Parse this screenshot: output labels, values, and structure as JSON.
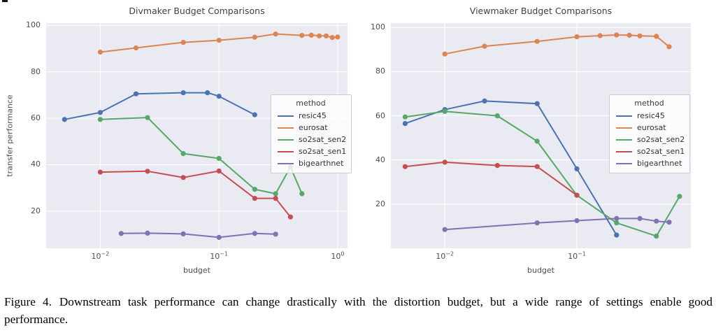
{
  "page": {
    "caption_label": "Figure 4.",
    "caption_text": "Downstream task performance can change drastically with the distortion budget, but a wide range of settings enable good performance."
  },
  "colors": {
    "figure_background": "#ffffff",
    "plot_background": "#eaeaf2",
    "gridline": "#ffffff",
    "title_text": "#3f3f3f",
    "tick_text": "#4d4d4d",
    "legend_border": "#ccccd6"
  },
  "chart_data": [
    {
      "type": "line",
      "title": "Divmaker Budget Comparisons",
      "xlabel": "budget",
      "ylabel": "transfer performance",
      "xscale": "log",
      "xlim": [
        0.0035,
        1.21
      ],
      "ylim": [
        4,
        101
      ],
      "grid": true,
      "legend_title": "method",
      "legend_position": "center-right",
      "yticks": [
        {
          "value": 20,
          "label": "20"
        },
        {
          "value": 40,
          "label": "40"
        },
        {
          "value": 60,
          "label": "60"
        },
        {
          "value": 80,
          "label": "80"
        },
        {
          "value": 100,
          "label": "100"
        }
      ],
      "xticks": [
        {
          "value": 0.01,
          "base": "10",
          "exp": "−2"
        },
        {
          "value": 0.1,
          "base": "10",
          "exp": "−1"
        },
        {
          "value": 1,
          "base": "10",
          "exp": "0"
        }
      ],
      "series": [
        {
          "name": "resic45",
          "color": "#4c72b0",
          "points": [
            [
              0.005,
              59.5
            ],
            [
              0.01,
              62.5
            ],
            [
              0.02,
              70.5
            ],
            [
              0.05,
              71.0
            ],
            [
              0.08,
              71.0
            ],
            [
              0.1,
              69.5
            ],
            [
              0.2,
              61.5
            ]
          ]
        },
        {
          "name": "eurosat",
          "color": "#dd8452",
          "points": [
            [
              0.01,
              88.5
            ],
            [
              0.02,
              90.3
            ],
            [
              0.05,
              92.7
            ],
            [
              0.1,
              93.6
            ],
            [
              0.2,
              94.9
            ],
            [
              0.3,
              96.3
            ],
            [
              0.5,
              95.7
            ],
            [
              0.6,
              95.8
            ],
            [
              0.7,
              95.5
            ],
            [
              0.8,
              95.5
            ],
            [
              0.9,
              94.8
            ],
            [
              1.0,
              95.0
            ]
          ]
        },
        {
          "name": "so2sat_sen2",
          "color": "#55a868",
          "points": [
            [
              0.01,
              59.5
            ],
            [
              0.025,
              60.3
            ],
            [
              0.05,
              44.8
            ],
            [
              0.1,
              42.7
            ],
            [
              0.2,
              29.4
            ],
            [
              0.3,
              27.5
            ],
            [
              0.4,
              39.0
            ],
            [
              0.5,
              27.5
            ]
          ]
        },
        {
          "name": "so2sat_sen1",
          "color": "#c44e52",
          "points": [
            [
              0.01,
              36.8
            ],
            [
              0.025,
              37.2
            ],
            [
              0.05,
              34.5
            ],
            [
              0.1,
              37.3
            ],
            [
              0.2,
              25.5
            ],
            [
              0.3,
              25.5
            ],
            [
              0.4,
              17.5
            ]
          ]
        },
        {
          "name": "bigearthnet",
          "color": "#8172b3",
          "points": [
            [
              0.015,
              10.4
            ],
            [
              0.025,
              10.5
            ],
            [
              0.05,
              10.2
            ],
            [
              0.1,
              8.7
            ],
            [
              0.2,
              10.4
            ],
            [
              0.3,
              10.1
            ]
          ]
        }
      ]
    },
    {
      "type": "line",
      "title": "Viewmaker Budget Comparisons",
      "xlabel": "budget",
      "ylabel": "",
      "xscale": "log",
      "xlim": [
        0.0039,
        0.73
      ],
      "ylim": [
        0,
        102
      ],
      "grid": true,
      "legend_title": "method",
      "legend_position": "center-right",
      "yticks": [
        {
          "value": 20,
          "label": "20"
        },
        {
          "value": 40,
          "label": "40"
        },
        {
          "value": 60,
          "label": "60"
        },
        {
          "value": 80,
          "label": "80"
        },
        {
          "value": 100,
          "label": "100"
        }
      ],
      "xticks": [
        {
          "value": 0.01,
          "base": "10",
          "exp": "−2"
        },
        {
          "value": 0.1,
          "base": "10",
          "exp": "−1"
        }
      ],
      "series": [
        {
          "name": "resic45",
          "color": "#4c72b0",
          "points": [
            [
              0.005,
              56.5
            ],
            [
              0.01,
              62.8
            ],
            [
              0.02,
              66.7
            ],
            [
              0.05,
              65.5
            ],
            [
              0.1,
              36.0
            ],
            [
              0.2,
              6.0
            ]
          ]
        },
        {
          "name": "eurosat",
          "color": "#dd8452",
          "points": [
            [
              0.01,
              88.0
            ],
            [
              0.02,
              91.5
            ],
            [
              0.05,
              93.7
            ],
            [
              0.1,
              95.8
            ],
            [
              0.15,
              96.3
            ],
            [
              0.2,
              96.6
            ],
            [
              0.25,
              96.5
            ],
            [
              0.3,
              96.2
            ],
            [
              0.4,
              96.0
            ],
            [
              0.5,
              91.3
            ]
          ]
        },
        {
          "name": "so2sat_sen2",
          "color": "#55a868",
          "points": [
            [
              0.005,
              59.5
            ],
            [
              0.01,
              62.0
            ],
            [
              0.025,
              60.0
            ],
            [
              0.05,
              48.5
            ],
            [
              0.1,
              24.0
            ],
            [
              0.2,
              11.5
            ],
            [
              0.4,
              5.5
            ],
            [
              0.6,
              23.5
            ]
          ]
        },
        {
          "name": "so2sat_sen1",
          "color": "#c44e52",
          "points": [
            [
              0.005,
              37.0
            ],
            [
              0.01,
              39.0
            ],
            [
              0.025,
              37.5
            ],
            [
              0.05,
              37.0
            ],
            [
              0.1,
              24.0
            ]
          ]
        },
        {
          "name": "bigearthnet",
          "color": "#8172b3",
          "points": [
            [
              0.01,
              8.5
            ],
            [
              0.05,
              11.5
            ],
            [
              0.1,
              12.5
            ],
            [
              0.2,
              13.5
            ],
            [
              0.3,
              13.5
            ],
            [
              0.4,
              12.3
            ],
            [
              0.5,
              11.8
            ]
          ]
        }
      ]
    }
  ]
}
